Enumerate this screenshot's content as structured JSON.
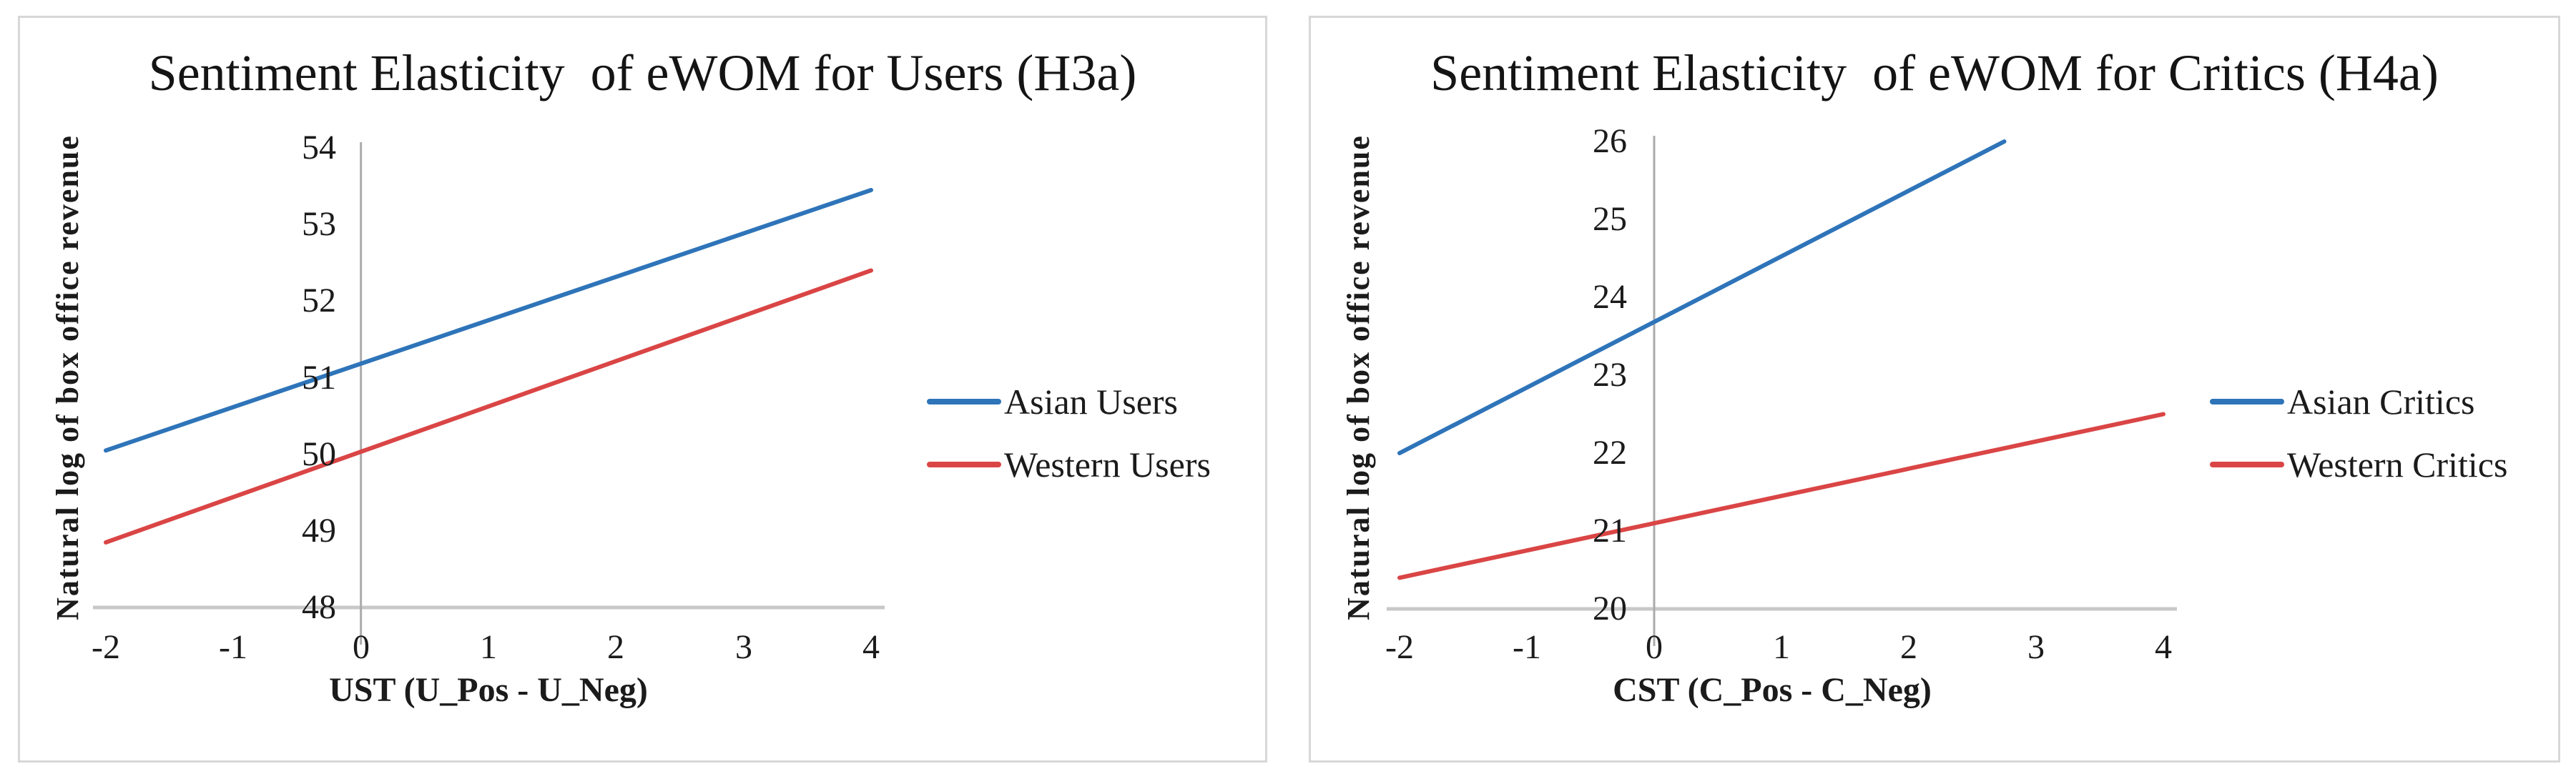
{
  "page": {
    "background": "#ffffff",
    "panel_border_color": "#d7d7d7"
  },
  "chart_data": [
    {
      "type": "line",
      "title": "Sentiment Elasticity  of eWOM for Users (H3a)",
      "xlabel": "UST (U_Pos - U_Neg)",
      "ylabel": "Natural log of box office revenue",
      "xlim": [
        -2,
        4
      ],
      "ylim": [
        48,
        54
      ],
      "x_ticks": [
        -2,
        -1,
        0,
        1,
        2,
        3,
        4
      ],
      "y_ticks": [
        54,
        53,
        52,
        51,
        50,
        49,
        48
      ],
      "grid": false,
      "legend_position": "center-right",
      "axis_color": "#ababab",
      "baseline_color": "#c8c8c8",
      "series": [
        {
          "name": "Asian Users",
          "color": "#2e74b9",
          "points": [
            [
              -2,
              50.05
            ],
            [
              4,
              53.45
            ]
          ]
        },
        {
          "name": "Western Users",
          "color": "#da4545",
          "points": [
            [
              -2,
              48.85
            ],
            [
              4,
              52.4
            ]
          ]
        }
      ]
    },
    {
      "type": "line",
      "title": "Sentiment Elasticity  of eWOM for Critics (H4a)",
      "xlabel": "CST (C_Pos - C_Neg)",
      "ylabel": "Natural log of box office revenue",
      "xlim": [
        -2,
        4
      ],
      "ylim": [
        20,
        26
      ],
      "x_ticks": [
        -2,
        -1,
        0,
        1,
        2,
        3,
        4
      ],
      "y_ticks": [
        26,
        25,
        24,
        23,
        22,
        21,
        20
      ],
      "grid": false,
      "legend_position": "center-right",
      "axis_color": "#ababab",
      "baseline_color": "#c8c8c8",
      "series": [
        {
          "name": "Asian Critics",
          "color": "#2e74b9",
          "points": [
            [
              -2,
              22.0
            ],
            [
              2.75,
              26
            ]
          ]
        },
        {
          "name": "Western Critics",
          "color": "#da4545",
          "points": [
            [
              -2,
              20.4
            ],
            [
              4,
              22.5
            ]
          ]
        }
      ]
    }
  ]
}
